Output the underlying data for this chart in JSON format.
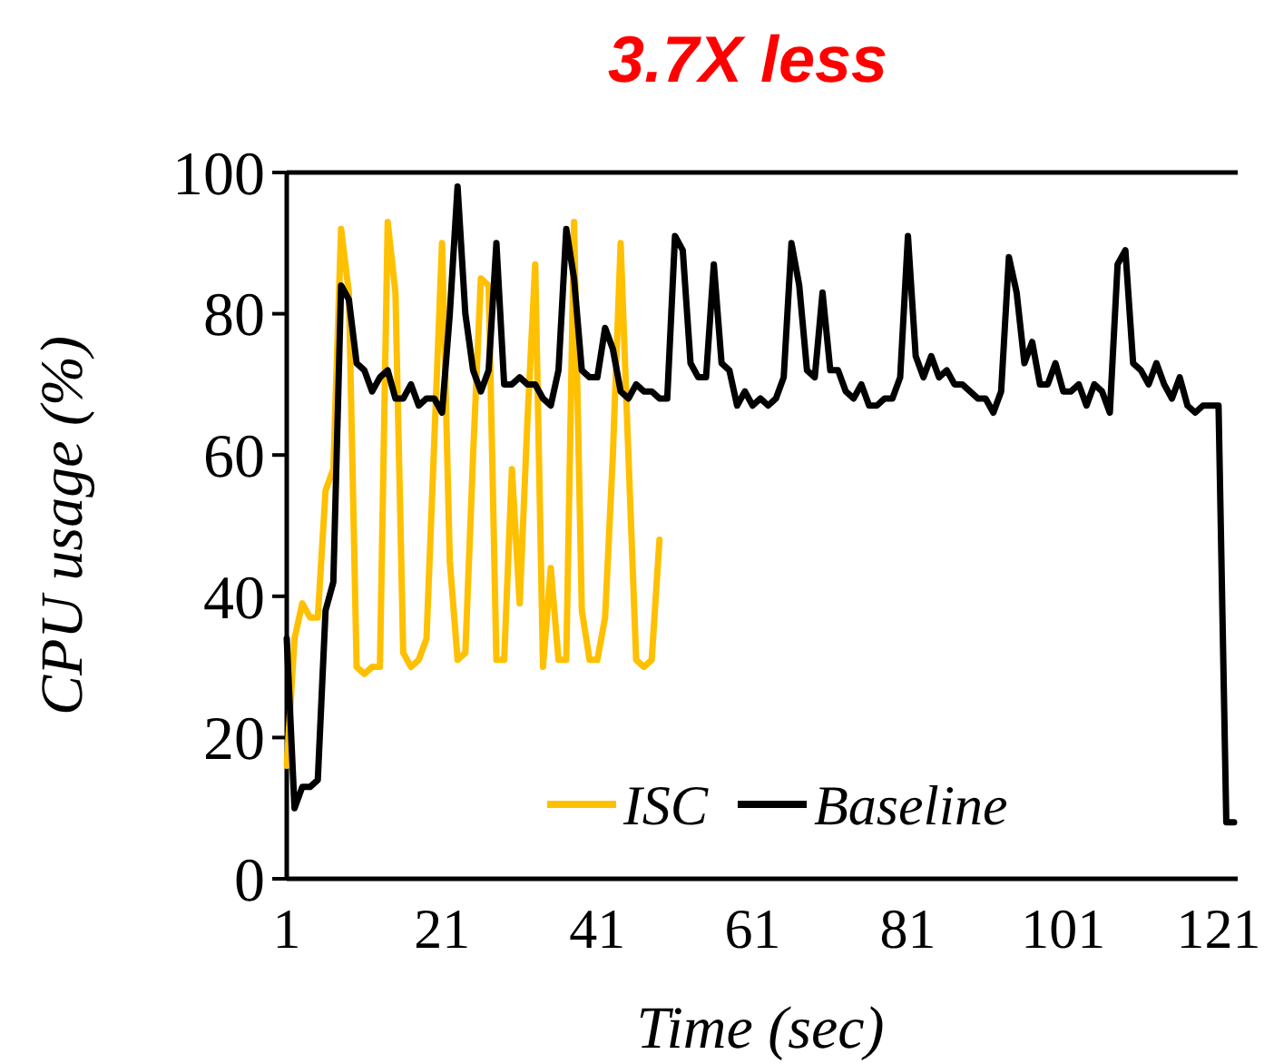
{
  "chart_data": {
    "type": "line",
    "title": "3.7X less",
    "xlabel": "Time (sec)",
    "ylabel": "CPU usage (%)",
    "xlim": [
      1,
      123
    ],
    "xticks": [
      1,
      21,
      41,
      61,
      81,
      101,
      121
    ],
    "ylim": [
      0,
      100
    ],
    "yticks": [
      0,
      20,
      40,
      60,
      80,
      100
    ],
    "grid": false,
    "legend": "bottom",
    "marker": "none",
    "line_style": "solid",
    "series": [
      {
        "name": "ISC",
        "color": "#ffc000",
        "x": [
          1,
          2,
          3,
          4,
          5,
          6,
          7,
          8,
          9,
          10,
          11,
          12,
          13,
          14,
          15,
          16,
          17,
          18,
          19,
          20,
          21,
          22,
          23,
          24,
          25,
          26,
          27,
          28,
          29,
          30,
          31,
          32,
          33,
          34,
          35,
          36,
          37,
          38,
          39,
          40,
          41,
          42,
          43,
          44,
          45,
          46,
          47,
          48,
          49
        ],
        "values": [
          16,
          34,
          39,
          37,
          37,
          55,
          58,
          92,
          83,
          30,
          29,
          30,
          30,
          93,
          83,
          32,
          30,
          31,
          34,
          62,
          90,
          45,
          31,
          32,
          60,
          85,
          84,
          31,
          31,
          58,
          39,
          65,
          87,
          30,
          44,
          31,
          31,
          93,
          38,
          31,
          31,
          37,
          60,
          90,
          60,
          31,
          30,
          31,
          48
        ]
      },
      {
        "name": "Baseline",
        "color": "#000000",
        "x": [
          1,
          2,
          3,
          4,
          5,
          6,
          7,
          8,
          9,
          10,
          11,
          12,
          13,
          14,
          15,
          16,
          17,
          18,
          19,
          20,
          21,
          22,
          23,
          24,
          25,
          26,
          27,
          28,
          29,
          30,
          31,
          32,
          33,
          34,
          35,
          36,
          37,
          38,
          39,
          40,
          41,
          42,
          43,
          44,
          45,
          46,
          47,
          48,
          49,
          50,
          51,
          52,
          53,
          54,
          55,
          56,
          57,
          58,
          59,
          60,
          61,
          62,
          63,
          64,
          65,
          66,
          67,
          68,
          69,
          70,
          71,
          72,
          73,
          74,
          75,
          76,
          77,
          78,
          79,
          80,
          81,
          82,
          83,
          84,
          85,
          86,
          87,
          88,
          89,
          90,
          91,
          92,
          93,
          94,
          95,
          96,
          97,
          98,
          99,
          100,
          101,
          102,
          103,
          104,
          105,
          106,
          107,
          108,
          109,
          110,
          111,
          112,
          113,
          114,
          115,
          116,
          117,
          118,
          119,
          120,
          121,
          122,
          123
        ],
        "values": [
          34,
          10,
          13,
          13,
          14,
          38,
          42,
          84,
          82,
          73,
          72,
          69,
          71,
          72,
          68,
          68,
          70,
          67,
          68,
          68,
          66,
          80,
          98,
          80,
          72,
          69,
          72,
          90,
          70,
          70,
          71,
          70,
          70,
          68,
          67,
          72,
          92,
          85,
          72,
          71,
          71,
          78,
          75,
          69,
          68,
          70,
          69,
          69,
          68,
          68,
          91,
          89,
          73,
          71,
          71,
          87,
          73,
          72,
          67,
          69,
          67,
          68,
          67,
          68,
          71,
          90,
          84,
          72,
          71,
          83,
          72,
          72,
          69,
          68,
          70,
          67,
          67,
          68,
          68,
          71,
          91,
          74,
          71,
          74,
          71,
          72,
          70,
          70,
          69,
          68,
          68,
          66,
          69,
          88,
          83,
          73,
          76,
          70,
          70,
          73,
          69,
          69,
          70,
          67,
          70,
          69,
          66,
          87,
          89,
          73,
          72,
          70,
          73,
          70,
          68,
          71,
          67,
          66,
          67,
          67,
          67,
          8,
          8
        ]
      }
    ]
  }
}
